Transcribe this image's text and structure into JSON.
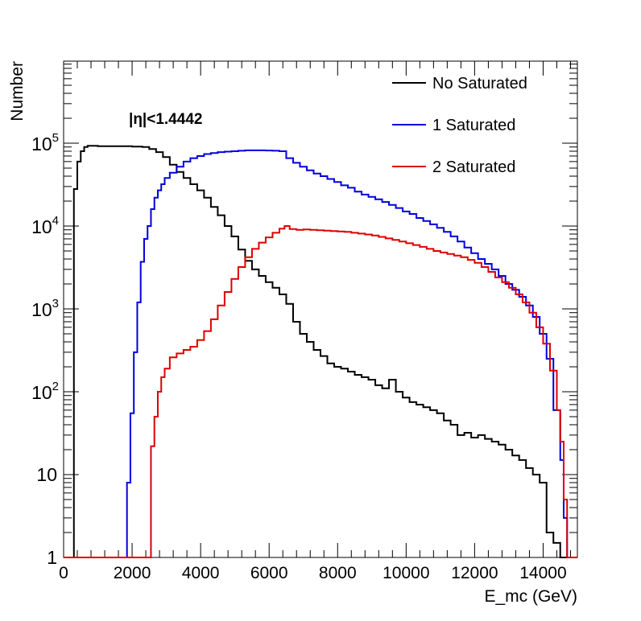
{
  "chart_data": {
    "type": "line",
    "subtype": "step-histogram",
    "title": "",
    "annotation": "|η|<1.4442",
    "xlabel": "E_mc (GeV)",
    "ylabel": "Number",
    "xlim": [
      0,
      15000
    ],
    "ylim": [
      1,
      1000000
    ],
    "yscale": "log",
    "grid": false,
    "legend_position": "top-right",
    "bin_width": 100,
    "x_ticks": [
      {
        "value": 0,
        "label": "0"
      },
      {
        "value": 2000,
        "label": "2000"
      },
      {
        "value": 4000,
        "label": "4000"
      },
      {
        "value": 6000,
        "label": "6000"
      },
      {
        "value": 8000,
        "label": "8000"
      },
      {
        "value": 10000,
        "label": "10000"
      },
      {
        "value": 12000,
        "label": "12000"
      },
      {
        "value": 14000,
        "label": "14000"
      }
    ],
    "y_ticks": [
      {
        "value": 1,
        "label": "1"
      },
      {
        "value": 10,
        "label": "10"
      },
      {
        "value": 100,
        "label": "10^2"
      },
      {
        "value": 1000,
        "label": "10^3"
      },
      {
        "value": 10000,
        "label": "10^4"
      },
      {
        "value": 100000,
        "label": "10^5"
      }
    ],
    "series": [
      {
        "name": "No Saturated",
        "color": "#000000",
        "points": [
          [
            300,
            28000
          ],
          [
            400,
            60000
          ],
          [
            500,
            80000
          ],
          [
            600,
            90000
          ],
          [
            700,
            93000
          ],
          [
            1000,
            92000
          ],
          [
            1500,
            92000
          ],
          [
            2000,
            91000
          ],
          [
            2300,
            90000
          ],
          [
            2500,
            85000
          ],
          [
            2700,
            78000
          ],
          [
            2900,
            68000
          ],
          [
            3100,
            55000
          ],
          [
            3300,
            45000
          ],
          [
            3500,
            38000
          ],
          [
            3700,
            32000
          ],
          [
            3900,
            27000
          ],
          [
            4100,
            22000
          ],
          [
            4300,
            17000
          ],
          [
            4500,
            13500
          ],
          [
            4700,
            10000
          ],
          [
            4900,
            7500
          ],
          [
            5100,
            5200
          ],
          [
            5300,
            3800
          ],
          [
            5500,
            3000
          ],
          [
            5700,
            2500
          ],
          [
            5900,
            2100
          ],
          [
            6100,
            1800
          ],
          [
            6300,
            1500
          ],
          [
            6500,
            1150
          ],
          [
            6700,
            700
          ],
          [
            6900,
            500
          ],
          [
            7100,
            400
          ],
          [
            7300,
            320
          ],
          [
            7500,
            270
          ],
          [
            7700,
            220
          ],
          [
            7900,
            200
          ],
          [
            8100,
            190
          ],
          [
            8300,
            175
          ],
          [
            8500,
            160
          ],
          [
            8700,
            150
          ],
          [
            8900,
            140
          ],
          [
            9100,
            120
          ],
          [
            9300,
            110
          ],
          [
            9500,
            140
          ],
          [
            9700,
            100
          ],
          [
            9900,
            85
          ],
          [
            10100,
            75
          ],
          [
            10300,
            70
          ],
          [
            10500,
            65
          ],
          [
            10700,
            60
          ],
          [
            10900,
            55
          ],
          [
            11100,
            45
          ],
          [
            11300,
            40
          ],
          [
            11500,
            30
          ],
          [
            11700,
            32
          ],
          [
            11900,
            28
          ],
          [
            12100,
            30
          ],
          [
            12300,
            27
          ],
          [
            12500,
            25
          ],
          [
            12700,
            23
          ],
          [
            12900,
            20
          ],
          [
            13100,
            17
          ],
          [
            13300,
            15
          ],
          [
            13500,
            12
          ],
          [
            13700,
            10
          ],
          [
            13900,
            8
          ],
          [
            14100,
            2
          ],
          [
            14300,
            1.5
          ],
          [
            14500,
            1
          ]
        ]
      },
      {
        "name": "1 Saturated",
        "color": "#0000dd",
        "points": [
          [
            1800,
            1
          ],
          [
            1850,
            8
          ],
          [
            1950,
            55
          ],
          [
            2050,
            300
          ],
          [
            2150,
            1200
          ],
          [
            2250,
            3700
          ],
          [
            2350,
            7000
          ],
          [
            2450,
            10000
          ],
          [
            2550,
            16000
          ],
          [
            2650,
            22000
          ],
          [
            2750,
            27000
          ],
          [
            2850,
            32000
          ],
          [
            2950,
            38000
          ],
          [
            3100,
            44000
          ],
          [
            3300,
            52000
          ],
          [
            3500,
            60000
          ],
          [
            3700,
            66000
          ],
          [
            3900,
            70000
          ],
          [
            4100,
            74000
          ],
          [
            4300,
            76000
          ],
          [
            4500,
            78000
          ],
          [
            4700,
            79000
          ],
          [
            4900,
            80000
          ],
          [
            5100,
            81000
          ],
          [
            5300,
            82000
          ],
          [
            5500,
            82000
          ],
          [
            5700,
            82000
          ],
          [
            5900,
            81500
          ],
          [
            6100,
            81000
          ],
          [
            6300,
            80000
          ],
          [
            6500,
            66000
          ],
          [
            6700,
            58000
          ],
          [
            6900,
            52000
          ],
          [
            7100,
            47000
          ],
          [
            7300,
            43000
          ],
          [
            7500,
            40000
          ],
          [
            7700,
            37000
          ],
          [
            7900,
            34000
          ],
          [
            8100,
            31000
          ],
          [
            8300,
            29000
          ],
          [
            8500,
            26000
          ],
          [
            8700,
            24000
          ],
          [
            8900,
            22500
          ],
          [
            9100,
            21000
          ],
          [
            9300,
            19500
          ],
          [
            9500,
            18000
          ],
          [
            9700,
            16500
          ],
          [
            9900,
            15000
          ],
          [
            10100,
            14000
          ],
          [
            10300,
            12500
          ],
          [
            10500,
            11500
          ],
          [
            10700,
            10500
          ],
          [
            10900,
            9500
          ],
          [
            11100,
            8500
          ],
          [
            11300,
            7500
          ],
          [
            11500,
            6500
          ],
          [
            11700,
            5500
          ],
          [
            11900,
            4700
          ],
          [
            12100,
            4000
          ],
          [
            12300,
            3500
          ],
          [
            12500,
            3000
          ],
          [
            12700,
            2500
          ],
          [
            12900,
            2000
          ],
          [
            13100,
            1700
          ],
          [
            13300,
            1400
          ],
          [
            13500,
            1100
          ],
          [
            13700,
            800
          ],
          [
            13900,
            500
          ],
          [
            14100,
            250
          ],
          [
            14300,
            60
          ],
          [
            14500,
            15
          ],
          [
            14600,
            3
          ],
          [
            14700,
            1
          ]
        ]
      },
      {
        "name": "2 Saturated",
        "color": "#dd0000",
        "points": [
          [
            2500,
            1
          ],
          [
            2550,
            22
          ],
          [
            2650,
            50
          ],
          [
            2750,
            100
          ],
          [
            2850,
            150
          ],
          [
            2950,
            190
          ],
          [
            3100,
            260
          ],
          [
            3300,
            290
          ],
          [
            3500,
            320
          ],
          [
            3700,
            350
          ],
          [
            3900,
            420
          ],
          [
            4100,
            540
          ],
          [
            4300,
            750
          ],
          [
            4500,
            1100
          ],
          [
            4700,
            1600
          ],
          [
            4900,
            2300
          ],
          [
            5100,
            3200
          ],
          [
            5300,
            4200
          ],
          [
            5500,
            5300
          ],
          [
            5700,
            6300
          ],
          [
            5900,
            7300
          ],
          [
            6100,
            8300
          ],
          [
            6300,
            9300
          ],
          [
            6450,
            10000
          ],
          [
            6600,
            9200
          ],
          [
            6800,
            9000
          ],
          [
            7000,
            9100
          ],
          [
            7200,
            9000
          ],
          [
            7400,
            8900
          ],
          [
            7600,
            8800
          ],
          [
            7800,
            8700
          ],
          [
            8000,
            8600
          ],
          [
            8200,
            8500
          ],
          [
            8400,
            8300
          ],
          [
            8600,
            8100
          ],
          [
            8800,
            7900
          ],
          [
            9000,
            7700
          ],
          [
            9200,
            7400
          ],
          [
            9400,
            7100
          ],
          [
            9600,
            6800
          ],
          [
            9800,
            6500
          ],
          [
            10000,
            6200
          ],
          [
            10200,
            5900
          ],
          [
            10400,
            5600
          ],
          [
            10600,
            5300
          ],
          [
            10800,
            5000
          ],
          [
            11000,
            4800
          ],
          [
            11200,
            4600
          ],
          [
            11400,
            4400
          ],
          [
            11600,
            4200
          ],
          [
            11800,
            3900
          ],
          [
            12000,
            3600
          ],
          [
            12200,
            3200
          ],
          [
            12400,
            2800
          ],
          [
            12600,
            2400
          ],
          [
            12800,
            2100
          ],
          [
            13000,
            1800
          ],
          [
            13200,
            1500
          ],
          [
            13400,
            1200
          ],
          [
            13600,
            900
          ],
          [
            13800,
            600
          ],
          [
            14000,
            380
          ],
          [
            14200,
            180
          ],
          [
            14400,
            60
          ],
          [
            14500,
            25
          ],
          [
            14600,
            5
          ],
          [
            14700,
            1
          ]
        ]
      }
    ]
  }
}
